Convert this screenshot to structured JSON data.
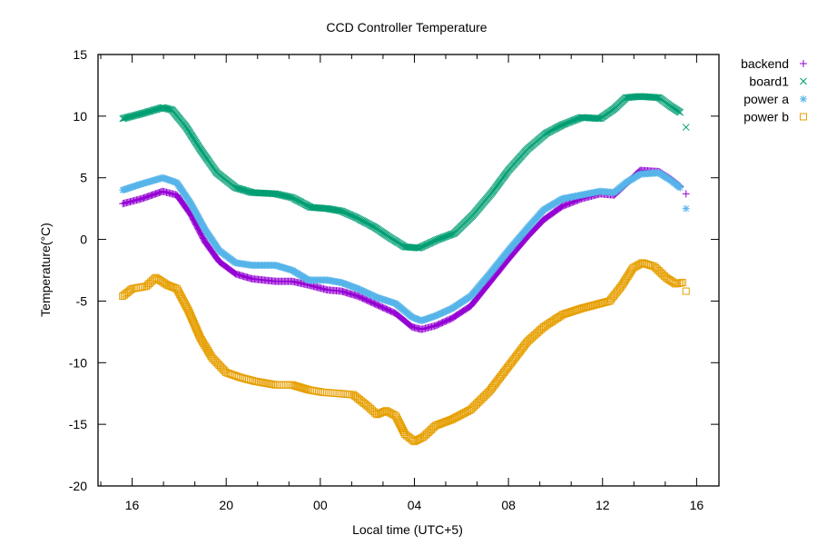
{
  "chart_data": {
    "type": "scatter",
    "title": "CCD Controller Temperature",
    "xlabel": "Local time (UTC+5)",
    "ylabel": "Temperature(°C)",
    "xlim": [
      14.55,
      40.95
    ],
    "ylim": [
      -20,
      15
    ],
    "x_ticks": [
      {
        "value": 16,
        "label": "16"
      },
      {
        "value": 20,
        "label": "20"
      },
      {
        "value": 24,
        "label": "00"
      },
      {
        "value": 28,
        "label": "04"
      },
      {
        "value": 32,
        "label": "08"
      },
      {
        "value": 36,
        "label": "12"
      },
      {
        "value": 40,
        "label": "16"
      }
    ],
    "x_minor_step": 1.3333,
    "y_ticks": [
      {
        "value": 15,
        "label": "15"
      },
      {
        "value": 10,
        "label": "10"
      },
      {
        "value": 5,
        "label": "5"
      },
      {
        "value": 0,
        "label": "0"
      },
      {
        "value": -5,
        "label": "-5"
      },
      {
        "value": -10,
        "label": "-10"
      },
      {
        "value": -15,
        "label": "-15"
      },
      {
        "value": -20,
        "label": "-20"
      }
    ],
    "grid": false,
    "legend_position": "outside-top-right",
    "series": [
      {
        "name": "backend",
        "color": "#9400d3",
        "marker": "plus",
        "x": [
          15.6,
          16.4,
          17.3,
          17.9,
          18.5,
          19.1,
          19.7,
          20.4,
          21.1,
          22.1,
          22.8,
          23.5,
          24.3,
          24.9,
          25.6,
          26.4,
          27.2,
          27.9,
          28.3,
          28.9,
          29.6,
          30.4,
          31.2,
          32.0,
          32.8,
          33.5,
          34.3,
          35.1,
          35.9,
          36.5,
          37.0,
          37.6,
          38.4,
          38.9,
          39.3
        ],
        "y": [
          2.9,
          3.3,
          3.9,
          3.6,
          2.0,
          -0.2,
          -1.8,
          -2.8,
          -3.2,
          -3.4,
          -3.4,
          -3.7,
          -4.1,
          -4.2,
          -4.6,
          -5.3,
          -6.0,
          -7.1,
          -7.3,
          -7.0,
          -6.4,
          -5.4,
          -3.5,
          -1.6,
          0.2,
          1.6,
          2.7,
          3.3,
          3.7,
          3.6,
          4.5,
          5.6,
          5.5,
          4.9,
          4.3
        ],
        "trailing": [
          {
            "x": 39.55,
            "y": 3.7
          }
        ]
      },
      {
        "name": "board1",
        "color": "#009e73",
        "marker": "cross",
        "x": [
          15.6,
          16.4,
          17.3,
          17.7,
          18.3,
          18.9,
          19.6,
          20.4,
          21.1,
          22.1,
          22.8,
          23.6,
          24.3,
          24.9,
          25.5,
          26.3,
          27.0,
          27.6,
          28.2,
          29.0,
          29.7,
          30.5,
          31.3,
          32.0,
          32.8,
          33.6,
          34.3,
          35.1,
          35.9,
          36.5,
          37.0,
          37.6,
          38.4,
          38.9,
          39.3
        ],
        "y": [
          9.8,
          10.2,
          10.7,
          10.5,
          9.1,
          7.3,
          5.4,
          4.2,
          3.8,
          3.7,
          3.4,
          2.6,
          2.5,
          2.3,
          1.8,
          1.0,
          0.1,
          -0.6,
          -0.7,
          0.0,
          0.5,
          2.0,
          3.8,
          5.6,
          7.3,
          8.6,
          9.3,
          9.9,
          9.8,
          10.6,
          11.5,
          11.6,
          11.5,
          10.8,
          10.3
        ],
        "trailing": [
          {
            "x": 39.55,
            "y": 9.1
          }
        ]
      },
      {
        "name": "power a",
        "color": "#56b4e9",
        "marker": "star",
        "x": [
          15.6,
          16.4,
          17.3,
          17.9,
          18.5,
          19.1,
          19.7,
          20.4,
          21.1,
          22.1,
          22.8,
          23.5,
          24.3,
          24.9,
          25.6,
          26.4,
          27.2,
          27.9,
          28.3,
          28.9,
          29.6,
          30.4,
          31.2,
          32.0,
          32.8,
          33.5,
          34.3,
          35.1,
          35.9,
          36.5,
          37.0,
          37.6,
          38.4,
          38.9,
          39.3
        ],
        "y": [
          4.0,
          4.5,
          5.0,
          4.6,
          2.9,
          0.8,
          -0.9,
          -1.9,
          -2.1,
          -2.1,
          -2.5,
          -3.3,
          -3.3,
          -3.5,
          -4.0,
          -4.7,
          -5.2,
          -6.3,
          -6.6,
          -6.2,
          -5.6,
          -4.6,
          -2.8,
          -0.9,
          0.9,
          2.4,
          3.3,
          3.6,
          3.9,
          3.8,
          4.6,
          5.3,
          5.4,
          4.8,
          4.2
        ],
        "trailing": [
          {
            "x": 39.55,
            "y": 2.5
          }
        ]
      },
      {
        "name": "power b",
        "color": "#e69f00",
        "marker": "square",
        "x": [
          15.6,
          16.0,
          16.6,
          17.0,
          17.5,
          17.9,
          18.4,
          18.9,
          19.4,
          20.0,
          20.6,
          21.2,
          22.1,
          22.8,
          23.5,
          24.1,
          24.8,
          25.4,
          26.0,
          26.4,
          26.8,
          27.2,
          27.6,
          28.0,
          28.4,
          28.9,
          29.6,
          30.4,
          31.2,
          32.0,
          32.8,
          33.5,
          34.3,
          35.1,
          35.9,
          36.3,
          36.8,
          37.3,
          37.7,
          38.2,
          38.7,
          39.1,
          39.4
        ],
        "y": [
          -4.6,
          -4.0,
          -3.8,
          -3.1,
          -3.7,
          -4.0,
          -5.8,
          -8.0,
          -9.6,
          -10.8,
          -11.2,
          -11.5,
          -11.8,
          -11.8,
          -12.2,
          -12.4,
          -12.5,
          -12.6,
          -13.5,
          -14.2,
          -13.9,
          -14.3,
          -15.8,
          -16.4,
          -16.0,
          -15.1,
          -14.6,
          -13.8,
          -12.3,
          -10.3,
          -8.3,
          -7.1,
          -6.1,
          -5.6,
          -5.2,
          -5.0,
          -3.8,
          -2.3,
          -1.9,
          -2.2,
          -3.1,
          -3.6,
          -3.5
        ],
        "trailing": [
          {
            "x": 39.55,
            "y": -4.2
          }
        ]
      }
    ]
  }
}
